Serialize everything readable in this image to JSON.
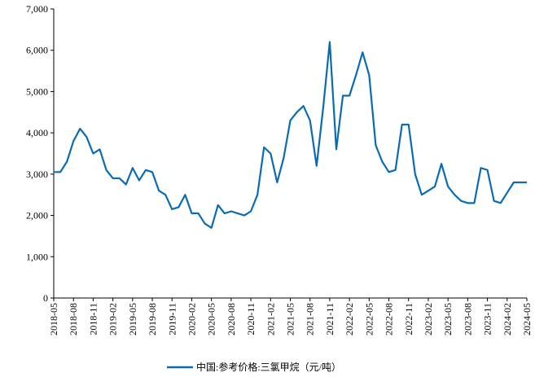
{
  "chart_data": {
    "type": "line",
    "categories": [
      "2018-05",
      null,
      null,
      "2018-08",
      null,
      null,
      "2018-11",
      null,
      null,
      "2019-02",
      null,
      null,
      "2019-05",
      null,
      null,
      "2019-08",
      null,
      null,
      "2019-11",
      null,
      null,
      "2020-02",
      null,
      null,
      "2020-05",
      null,
      null,
      "2020-08",
      null,
      null,
      "2020-11",
      null,
      null,
      "2021-02",
      null,
      null,
      "2021-05",
      null,
      null,
      "2021-08",
      null,
      null,
      "2021-11",
      null,
      null,
      "2022-02",
      null,
      null,
      "2022-05",
      null,
      null,
      "2022-08",
      null,
      null,
      "2022-11",
      null,
      null,
      "2023-02",
      null,
      null,
      "2023-05",
      null,
      null,
      "2023-08",
      null,
      null,
      "2023-11",
      null,
      null,
      "2024-02",
      null,
      null,
      "2024-05"
    ],
    "series": [
      {
        "name": "中国:参考价格:三氯甲烷（元/吨）",
        "color": "#0a6bb5",
        "values": [
          3050,
          3050,
          3300,
          3800,
          4100,
          3900,
          3500,
          3600,
          3100,
          2900,
          2900,
          2750,
          3150,
          2850,
          3100,
          3050,
          2600,
          2500,
          2150,
          2200,
          2500,
          2050,
          2050,
          1800,
          1700,
          2250,
          2050,
          2100,
          2050,
          2000,
          2100,
          2500,
          3650,
          3500,
          2800,
          3400,
          4300,
          4500,
          4650,
          4300,
          3200,
          4600,
          6200,
          3600,
          4900,
          4900,
          5400,
          5950,
          5400,
          3700,
          3300,
          3050,
          3100,
          4200,
          4200,
          3000,
          2500,
          2600,
          2700,
          3250,
          2700,
          2500,
          2350,
          2300,
          2300,
          3150,
          3100,
          2350,
          2300,
          2550,
          2800,
          2800,
          2800
        ]
      }
    ],
    "ylim": [
      0,
      7000
    ],
    "yticks": [
      0,
      {
        "value": 1000,
        "label": "1,000"
      },
      {
        "value": 2000,
        "label": "2,000"
      },
      {
        "value": 3000,
        "label": "3,000"
      },
      {
        "value": 4000,
        "label": "4,000"
      },
      {
        "value": 5000,
        "label": "5,000"
      },
      {
        "value": 6000,
        "label": "6,000"
      },
      {
        "value": 7000,
        "label": "7,000"
      }
    ],
    "grid": false,
    "legend": "bottom"
  }
}
